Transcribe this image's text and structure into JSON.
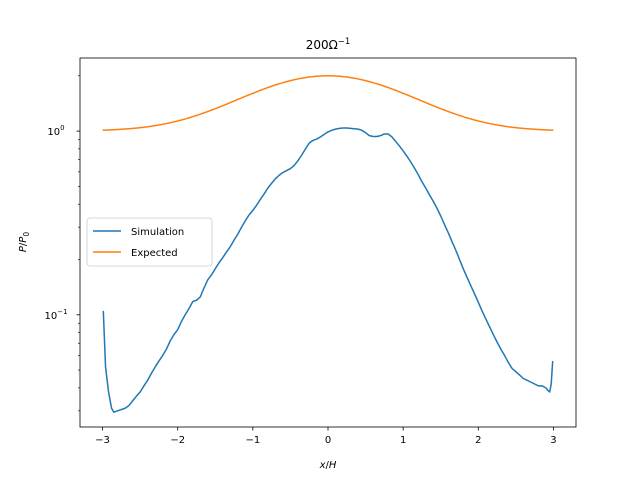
{
  "chart_data": {
    "type": "line",
    "title_base": "200Ω",
    "title_exp": "−1",
    "xlabel": {
      "a": "x",
      "sep": "/",
      "b": "H"
    },
    "ylabel": {
      "a": "P",
      "sep": "/",
      "b": "P",
      "sub": "0"
    },
    "y_scale": "log",
    "xlim": [
      -3.3,
      3.3
    ],
    "ylim": [
      0.0245,
      2.5
    ],
    "x_ticks": [
      -3,
      -2,
      -1,
      0,
      1,
      2,
      3
    ],
    "x_tick_labels": [
      "−3",
      "−2",
      "−1",
      "0",
      "1",
      "2",
      "3"
    ],
    "y_ticks": [
      {
        "value": 0.1,
        "base": "10",
        "exp": "−1"
      },
      {
        "value": 1,
        "base": "10",
        "exp": "0"
      }
    ],
    "grid": false,
    "legend_placement": "center-left",
    "series": [
      {
        "name": "Simulation",
        "color": "#1f77b4",
        "points": [
          [
            -2.99,
            0.105
          ],
          [
            -2.96,
            0.052
          ],
          [
            -2.92,
            0.038
          ],
          [
            -2.88,
            0.031
          ],
          [
            -2.85,
            0.0295
          ],
          [
            -2.8,
            0.03
          ],
          [
            -2.7,
            0.031
          ],
          [
            -2.65,
            0.032
          ],
          [
            -2.6,
            0.034
          ],
          [
            -2.55,
            0.036
          ],
          [
            -2.5,
            0.038
          ],
          [
            -2.45,
            0.041
          ],
          [
            -2.4,
            0.044
          ],
          [
            -2.35,
            0.048
          ],
          [
            -2.3,
            0.052
          ],
          [
            -2.25,
            0.056
          ],
          [
            -2.2,
            0.06
          ],
          [
            -2.15,
            0.065
          ],
          [
            -2.1,
            0.072
          ],
          [
            -2.05,
            0.078
          ],
          [
            -2.0,
            0.083
          ],
          [
            -1.95,
            0.092
          ],
          [
            -1.9,
            0.1
          ],
          [
            -1.85,
            0.108
          ],
          [
            -1.8,
            0.118
          ],
          [
            -1.75,
            0.12
          ],
          [
            -1.7,
            0.125
          ],
          [
            -1.65,
            0.14
          ],
          [
            -1.6,
            0.155
          ],
          [
            -1.55,
            0.165
          ],
          [
            -1.5,
            0.178
          ],
          [
            -1.45,
            0.192
          ],
          [
            -1.4,
            0.205
          ],
          [
            -1.35,
            0.22
          ],
          [
            -1.3,
            0.235
          ],
          [
            -1.25,
            0.255
          ],
          [
            -1.2,
            0.275
          ],
          [
            -1.15,
            0.3
          ],
          [
            -1.1,
            0.325
          ],
          [
            -1.05,
            0.35
          ],
          [
            -1.0,
            0.37
          ],
          [
            -0.95,
            0.395
          ],
          [
            -0.9,
            0.425
          ],
          [
            -0.85,
            0.455
          ],
          [
            -0.8,
            0.49
          ],
          [
            -0.75,
            0.52
          ],
          [
            -0.7,
            0.55
          ],
          [
            -0.65,
            0.575
          ],
          [
            -0.6,
            0.595
          ],
          [
            -0.55,
            0.61
          ],
          [
            -0.5,
            0.625
          ],
          [
            -0.45,
            0.65
          ],
          [
            -0.4,
            0.69
          ],
          [
            -0.35,
            0.74
          ],
          [
            -0.3,
            0.8
          ],
          [
            -0.25,
            0.86
          ],
          [
            -0.2,
            0.89
          ],
          [
            -0.15,
            0.905
          ],
          [
            -0.1,
            0.93
          ],
          [
            -0.05,
            0.96
          ],
          [
            0.0,
            0.99
          ],
          [
            0.05,
            1.01
          ],
          [
            0.1,
            1.025
          ],
          [
            0.15,
            1.035
          ],
          [
            0.2,
            1.04
          ],
          [
            0.25,
            1.04
          ],
          [
            0.3,
            1.035
          ],
          [
            0.35,
            1.03
          ],
          [
            0.4,
            1.025
          ],
          [
            0.45,
            1.01
          ],
          [
            0.5,
            0.98
          ],
          [
            0.55,
            0.945
          ],
          [
            0.6,
            0.935
          ],
          [
            0.65,
            0.935
          ],
          [
            0.7,
            0.945
          ],
          [
            0.75,
            0.965
          ],
          [
            0.8,
            0.965
          ],
          [
            0.85,
            0.93
          ],
          [
            0.9,
            0.88
          ],
          [
            0.95,
            0.83
          ],
          [
            1.0,
            0.78
          ],
          [
            1.05,
            0.73
          ],
          [
            1.1,
            0.68
          ],
          [
            1.15,
            0.63
          ],
          [
            1.2,
            0.58
          ],
          [
            1.25,
            0.53
          ],
          [
            1.3,
            0.49
          ],
          [
            1.35,
            0.45
          ],
          [
            1.4,
            0.415
          ],
          [
            1.45,
            0.38
          ],
          [
            1.5,
            0.345
          ],
          [
            1.55,
            0.31
          ],
          [
            1.6,
            0.28
          ],
          [
            1.65,
            0.25
          ],
          [
            1.7,
            0.225
          ],
          [
            1.75,
            0.2
          ],
          [
            1.8,
            0.178
          ],
          [
            1.85,
            0.16
          ],
          [
            1.9,
            0.144
          ],
          [
            1.95,
            0.13
          ],
          [
            2.0,
            0.117
          ],
          [
            2.05,
            0.105
          ],
          [
            2.1,
            0.095
          ],
          [
            2.15,
            0.086
          ],
          [
            2.2,
            0.078
          ],
          [
            2.25,
            0.071
          ],
          [
            2.3,
            0.065
          ],
          [
            2.35,
            0.06
          ],
          [
            2.4,
            0.055
          ],
          [
            2.45,
            0.051
          ],
          [
            2.5,
            0.049
          ],
          [
            2.55,
            0.047
          ],
          [
            2.6,
            0.045
          ],
          [
            2.65,
            0.044
          ],
          [
            2.7,
            0.043
          ],
          [
            2.75,
            0.042
          ],
          [
            2.8,
            0.041
          ],
          [
            2.85,
            0.041
          ],
          [
            2.9,
            0.04
          ],
          [
            2.92,
            0.039
          ],
          [
            2.95,
            0.038
          ],
          [
            2.97,
            0.042
          ],
          [
            2.99,
            0.056
          ]
        ]
      },
      {
        "name": "Expected",
        "color": "#ff7f0e",
        "function": "1 + exp(-x^2 / 2)",
        "x_range": [
          -3,
          3
        ]
      }
    ]
  }
}
